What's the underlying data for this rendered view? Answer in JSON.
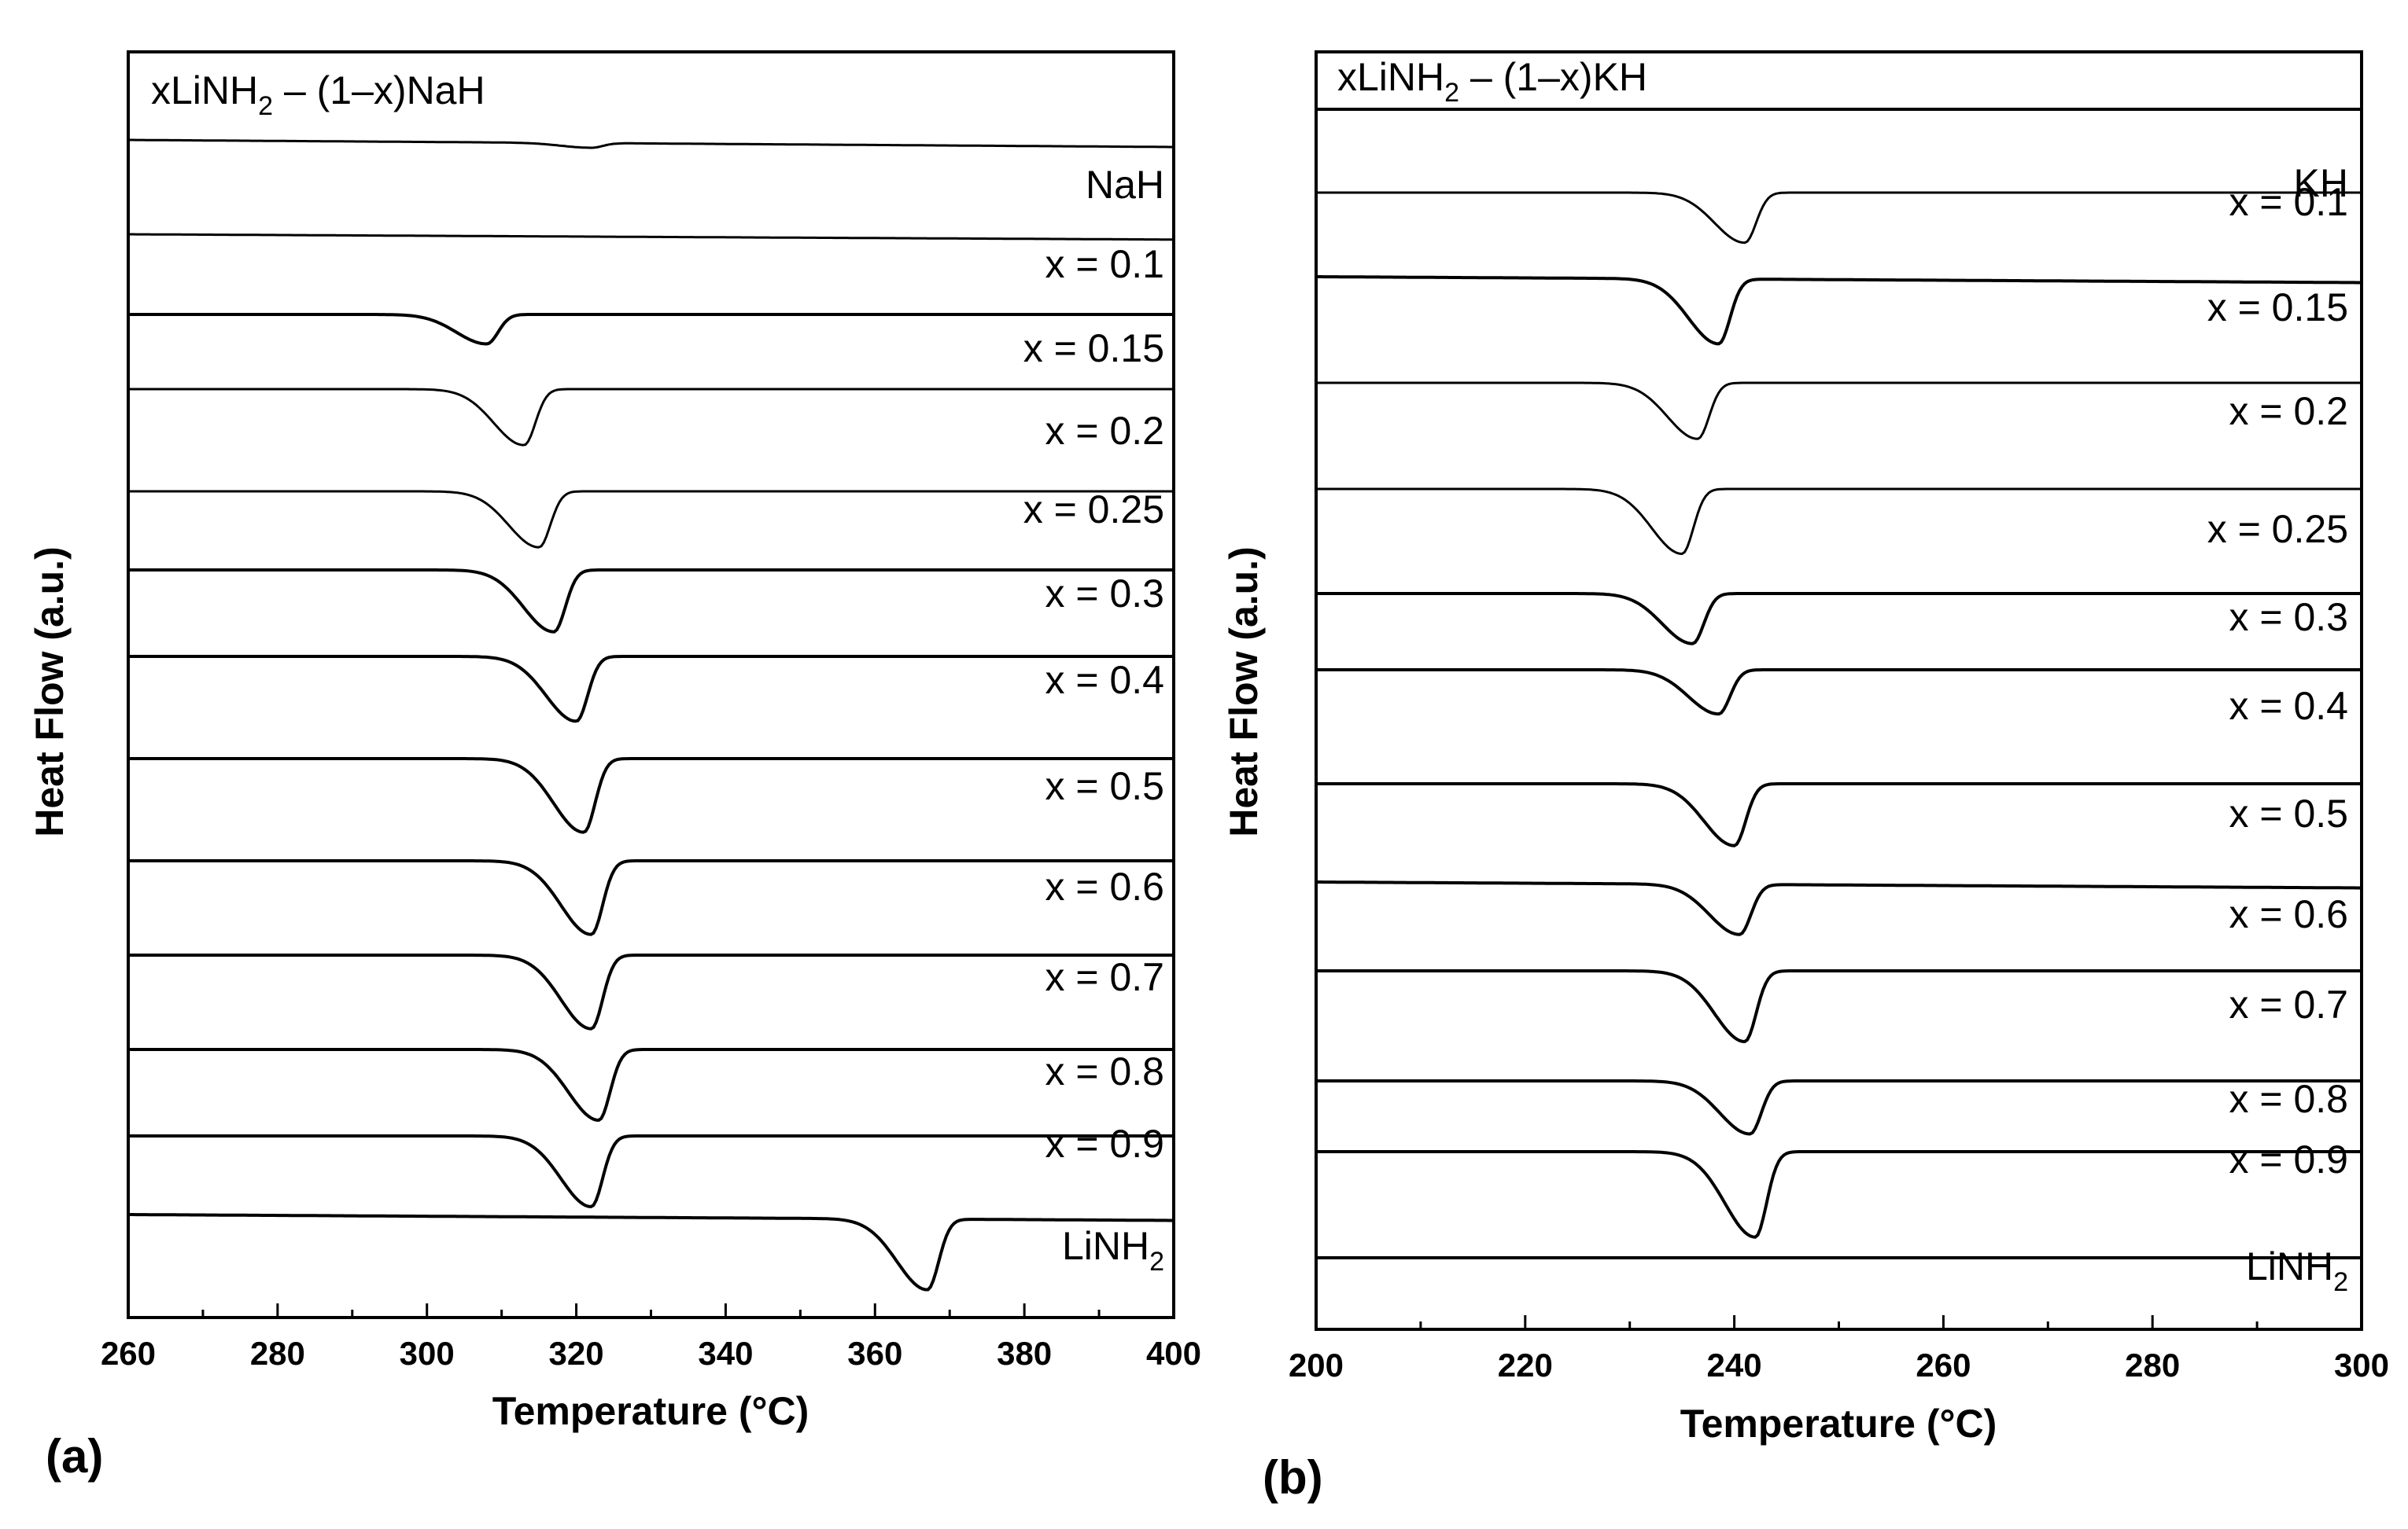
{
  "chart_data": [
    {
      "type": "line",
      "panel_letter": "(a)",
      "title": {
        "prefix": "xLiNH",
        "sub": "2",
        "suffix": " – (1–x)NaH"
      },
      "xlabel": "Temperature (°C)",
      "ylabel": "Heat Flow (a.u.)",
      "xlim": [
        260,
        400
      ],
      "xticks": [
        260,
        280,
        300,
        320,
        340,
        360,
        380,
        400
      ],
      "legend": "per-curve labels at right",
      "series": [
        {
          "name": "NaH",
          "label": "NaH",
          "baseline": 0.95,
          "peak_T": 322,
          "depth": 0.08,
          "drift": -0.12
        },
        {
          "name": "x = 0.1",
          "label": "x = 0.1",
          "baseline": 1.0,
          "peak_T": 322,
          "depth": 0.0,
          "drift": -0.09
        },
        {
          "name": "x = 0.15",
          "label": "x = 0.15",
          "baseline": 1.0,
          "peak_T": 308,
          "depth": 0.5,
          "drift": 0.0
        },
        {
          "name": "x = 0.2",
          "label": "x = 0.2",
          "baseline": 1.0,
          "peak_T": 313,
          "depth": 0.95,
          "drift": 0.0
        },
        {
          "name": "x = 0.25",
          "label": "x = 0.25",
          "baseline": 1.0,
          "peak_T": 315,
          "depth": 0.95,
          "drift": 0.0
        },
        {
          "name": "x = 0.3",
          "label": "x = 0.3",
          "baseline": 1.0,
          "peak_T": 317,
          "depth": 1.05,
          "drift": 0.0
        },
        {
          "name": "x = 0.4",
          "label": "x = 0.4",
          "baseline": 1.0,
          "peak_T": 320,
          "depth": 1.1,
          "drift": 0.0
        },
        {
          "name": "x = 0.5",
          "label": "x = 0.5",
          "baseline": 1.0,
          "peak_T": 321,
          "depth": 1.25,
          "drift": 0.0
        },
        {
          "name": "x = 0.6",
          "label": "x = 0.6",
          "baseline": 1.0,
          "peak_T": 322,
          "depth": 1.25,
          "drift": 0.0
        },
        {
          "name": "x = 0.7",
          "label": "x = 0.7",
          "baseline": 1.0,
          "peak_T": 322,
          "depth": 1.25,
          "drift": 0.0
        },
        {
          "name": "x = 0.8",
          "label": "x = 0.8",
          "baseline": 1.0,
          "peak_T": 323,
          "depth": 1.2,
          "drift": 0.0
        },
        {
          "name": "x = 0.9",
          "label": "x = 0.9",
          "baseline": 1.0,
          "peak_T": 322,
          "depth": 1.2,
          "drift": 0.0
        },
        {
          "name": "LiNH2",
          "label": {
            "prefix": "LiNH",
            "sub": "2"
          },
          "baseline": 1.0,
          "peak_T": 367,
          "depth": 1.2,
          "drift": -0.1
        }
      ]
    },
    {
      "type": "line",
      "panel_letter": "(b)",
      "title": {
        "prefix": "xLiNH",
        "sub": "2",
        "suffix": " – (1–x)KH"
      },
      "xlabel": "Temperature (°C)",
      "ylabel": "Heat Flow (a.u.)",
      "xlim": [
        200,
        300
      ],
      "xticks": [
        200,
        220,
        240,
        260,
        280,
        300
      ],
      "legend": "per-curve labels at right",
      "series": [
        {
          "name": "KH",
          "label": "KH",
          "baseline": 1.0,
          "peak_T": 241,
          "depth": 0.0,
          "drift": 0.0
        },
        {
          "name": "x = 0.1",
          "label": "x = 0.1",
          "baseline": 1.0,
          "peak_T": 241,
          "depth": 0.85,
          "drift": 0.0
        },
        {
          "name": "x = 0.15",
          "label": "x = 0.15",
          "baseline": 1.0,
          "peak_T": 238.5,
          "depth": 1.1,
          "drift": -0.1
        },
        {
          "name": "x = 0.2",
          "label": "x = 0.2",
          "baseline": 1.0,
          "peak_T": 236.5,
          "depth": 0.95,
          "drift": 0.0
        },
        {
          "name": "x = 0.25",
          "label": "x = 0.25",
          "baseline": 1.0,
          "peak_T": 235,
          "depth": 1.1,
          "drift": 0.0
        },
        {
          "name": "x = 0.3",
          "label": "x = 0.3",
          "baseline": 1.0,
          "peak_T": 236,
          "depth": 0.85,
          "drift": 0.0
        },
        {
          "name": "x = 0.4",
          "label": "x = 0.4",
          "baseline": 1.0,
          "peak_T": 238.5,
          "depth": 0.75,
          "drift": 0.0
        },
        {
          "name": "x = 0.5",
          "label": "x = 0.5",
          "baseline": 1.0,
          "peak_T": 240,
          "depth": 1.05,
          "drift": 0.0
        },
        {
          "name": "x = 0.6",
          "label": "x = 0.6",
          "baseline": 1.0,
          "peak_T": 240.5,
          "depth": 0.85,
          "drift": -0.1
        },
        {
          "name": "x = 0.7",
          "label": "x = 0.7",
          "baseline": 1.0,
          "peak_T": 241,
          "depth": 1.2,
          "drift": 0.0
        },
        {
          "name": "x = 0.8",
          "label": "x = 0.8",
          "baseline": 1.0,
          "peak_T": 241.5,
          "depth": 0.9,
          "drift": 0.0
        },
        {
          "name": "x = 0.9",
          "label": "x = 0.9",
          "baseline": 1.0,
          "peak_T": 242,
          "depth": 1.45,
          "drift": 0.0
        },
        {
          "name": "LiNH2",
          "label": {
            "prefix": "LiNH",
            "sub": "2"
          },
          "baseline": 1.0,
          "peak_T": 242,
          "depth": 0.0,
          "drift": 0.0
        }
      ]
    }
  ]
}
